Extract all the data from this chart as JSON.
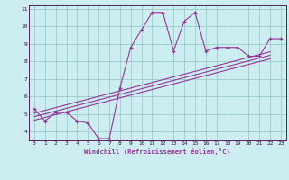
{
  "xlabel": "Windchill (Refroidissement éolien,°C)",
  "x_values": [
    0,
    1,
    2,
    3,
    4,
    5,
    6,
    7,
    8,
    9,
    10,
    11,
    12,
    13,
    14,
    15,
    16,
    17,
    18,
    19,
    20,
    21,
    22,
    23
  ],
  "main_y": [
    5.3,
    4.6,
    5.1,
    5.1,
    4.6,
    4.5,
    3.6,
    3.6,
    6.5,
    8.8,
    9.8,
    10.8,
    10.8,
    8.6,
    10.3,
    10.8,
    8.6,
    8.8,
    8.8,
    8.8,
    8.3,
    8.3,
    9.3,
    9.3
  ],
  "reg_lines": [
    {
      "x_start": 0,
      "y_start": 5.05,
      "x_end": 22,
      "y_end": 8.55
    },
    {
      "x_start": 0,
      "y_start": 4.85,
      "x_end": 22,
      "y_end": 8.35
    },
    {
      "x_start": 0,
      "y_start": 4.65,
      "x_end": 22,
      "y_end": 8.15
    }
  ],
  "bg_color": "#cceef0",
  "line_color": "#993399",
  "grid_color": "#99cccc",
  "xlim": [
    -0.5,
    23.5
  ],
  "ylim": [
    3.5,
    11.2
  ],
  "xticks": [
    0,
    1,
    2,
    3,
    4,
    5,
    6,
    7,
    8,
    9,
    10,
    11,
    12,
    13,
    14,
    15,
    16,
    17,
    18,
    19,
    20,
    21,
    22,
    23
  ],
  "yticks": [
    4,
    5,
    6,
    7,
    8,
    9,
    10,
    11
  ]
}
